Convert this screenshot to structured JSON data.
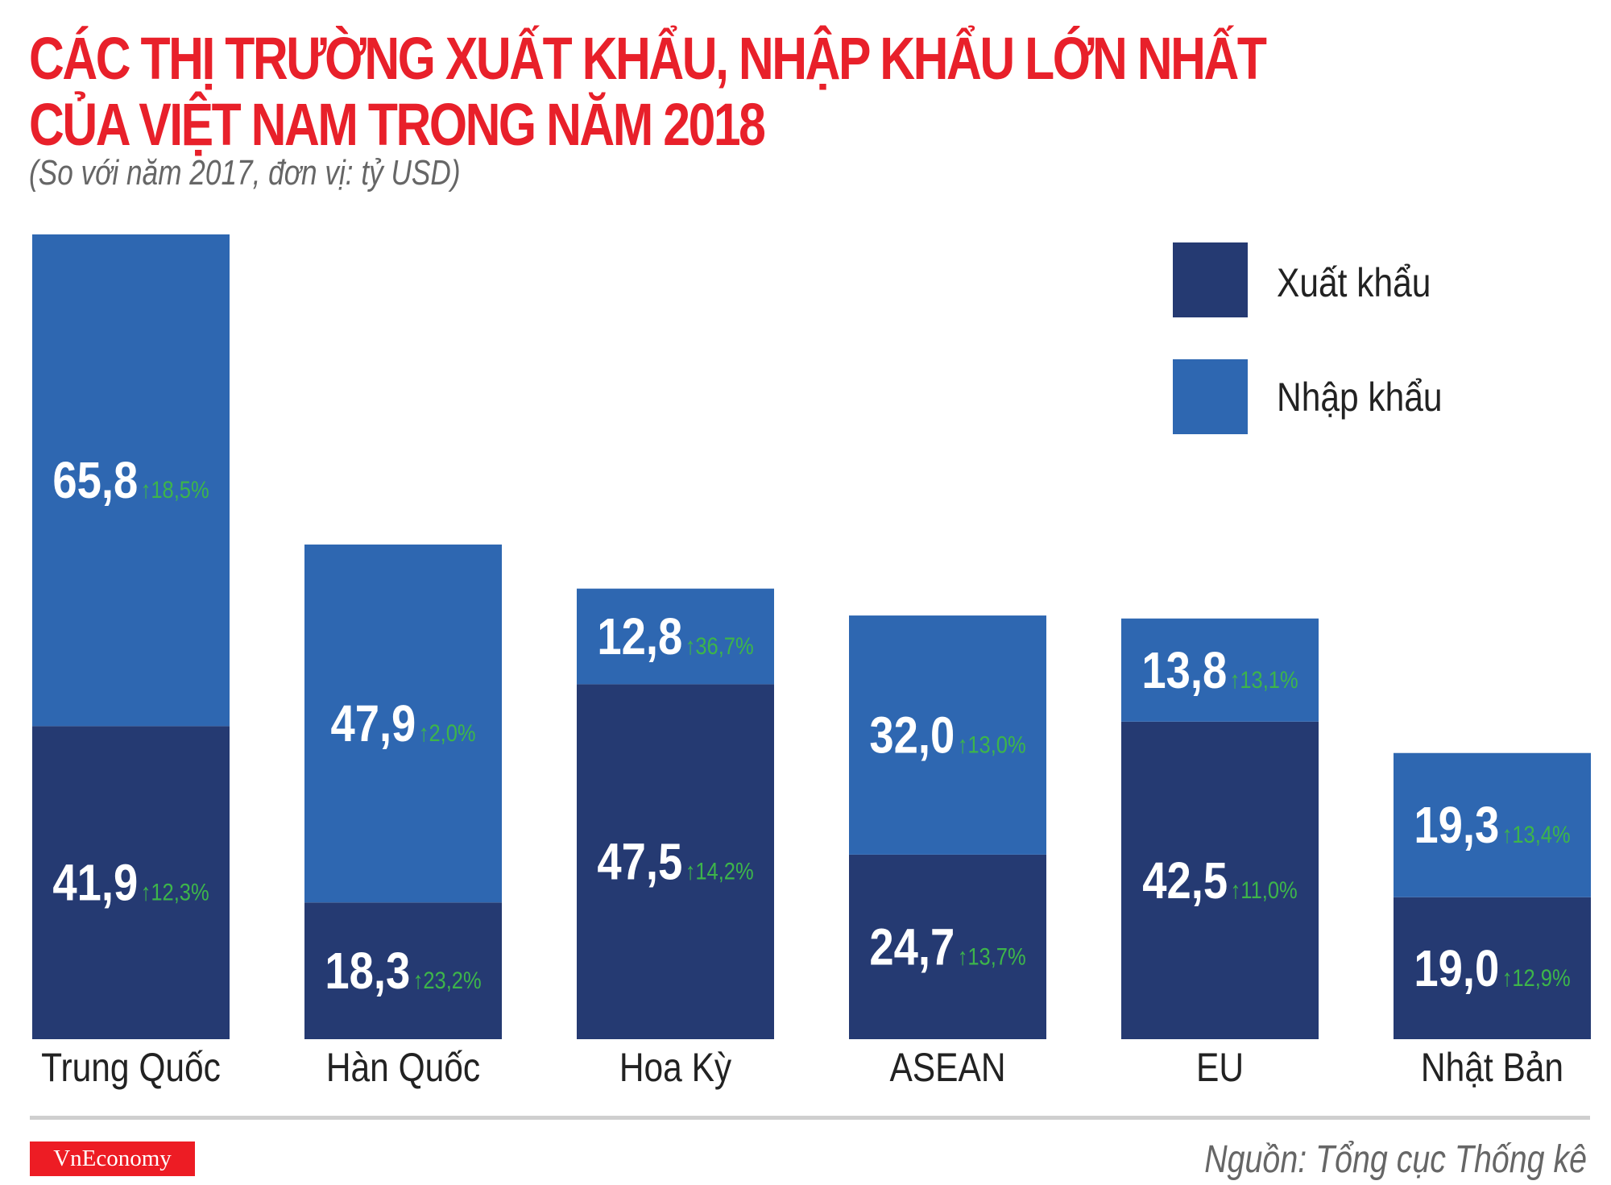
{
  "chart_data": {
    "type": "bar",
    "stacked": true,
    "title": "CÁC THỊ TRƯỜNG XUẤT KHẨU, NHẬP KHẨU LỚN NHẤT CỦA VIỆT NAM TRONG NĂM 2018",
    "title_lines": [
      "CÁC THỊ TRƯỜNG XUẤT KHẨU, NHẬP KHẨU LỚN NHẤT",
      "CỦA VIỆT NAM TRONG NĂM 2018"
    ],
    "subtitle": "(So với năm 2017, đơn vị: tỷ USD)",
    "categories": [
      "Trung Quốc",
      "Hàn Quốc",
      "Hoa Kỳ",
      "ASEAN",
      "EU",
      "Nhật Bản"
    ],
    "series": [
      {
        "name": "Xuất khẩu",
        "color": "#253a72",
        "values": [
          41.9,
          18.3,
          47.5,
          24.7,
          42.5,
          19.0
        ],
        "labels": [
          "41,9",
          "18,3",
          "47,5",
          "24,7",
          "42,5",
          "19,0"
        ],
        "change": [
          "12,3%",
          "23,2%",
          "14,2%",
          "13,7%",
          "11,0%",
          "12,9%"
        ]
      },
      {
        "name": "Nhập khẩu",
        "color": "#2e67b1",
        "values": [
          65.8,
          47.9,
          12.8,
          32.0,
          13.8,
          19.3
        ],
        "labels": [
          "65,8",
          "47,9",
          "12,8",
          "32,0",
          "13,8",
          "19,3"
        ],
        "change": [
          "18,5%",
          "2,0%",
          "36,7%",
          "13,0%",
          "13,1%",
          "13,4%"
        ]
      }
    ],
    "change_color": "#3db54a",
    "change_icon": "arrow-up-icon",
    "legend_position": "top-right",
    "grid": false,
    "ylim": [
      0,
      107.7
    ]
  },
  "brand": "VnEconomy",
  "source": "Nguồn: Tổng cục Thống kê"
}
